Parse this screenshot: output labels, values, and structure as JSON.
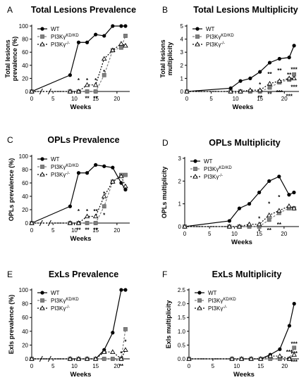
{
  "colors": {
    "wt": "#000000",
    "kd": "#808080",
    "ko": "#000000",
    "axis": "#000000"
  },
  "legend_labels": {
    "wt": "WT",
    "kd_base": "PI3Kγ",
    "kd_sup": "KD/KD",
    "ko_base": "PI3Kγ",
    "ko_sup": "-/-"
  },
  "xlabel": "Weeks",
  "chart_data": [
    {
      "letter": "A",
      "title": "Total Lesions Prevalence",
      "type": "line",
      "ylabel_lines": [
        "Total lesions",
        "prevalence (%)"
      ],
      "ylim": [
        0,
        100
      ],
      "yticks": [
        0,
        20,
        40,
        60,
        80,
        100
      ],
      "xticks": [
        0,
        5,
        10,
        15,
        20
      ],
      "xbreak": true,
      "legend": "top-left",
      "series": [
        {
          "name": "WT",
          "x": [
            0,
            9,
            11,
            13,
            15,
            17,
            19,
            21,
            22
          ],
          "y": [
            0,
            25,
            75,
            75,
            87,
            85,
            100,
            100,
            100
          ]
        },
        {
          "name": "PI3Kγ KD/KD",
          "x": [
            0,
            9,
            11,
            13,
            15,
            17,
            19,
            21,
            22
          ],
          "y": [
            0,
            0,
            0,
            0,
            0,
            25,
            63,
            67,
            85
          ]
        },
        {
          "name": "PI3Kγ -/-",
          "x": [
            0,
            9,
            11,
            13,
            15,
            17,
            19,
            21,
            22
          ],
          "y": [
            0,
            0,
            0,
            10,
            10,
            50,
            63,
            73,
            70
          ]
        }
      ],
      "annotations": [
        {
          "text": "*",
          "x": 11,
          "y": 17
        },
        {
          "text": "*",
          "x": 13,
          "y": 17
        },
        {
          "text": "*",
          "x": 15,
          "y": 17
        },
        {
          "text": "*",
          "x": 17,
          "y": 30
        },
        {
          "text": "**",
          "x": 13,
          "y": -10
        },
        {
          "text": "**",
          "x": 15,
          "y": -10
        }
      ]
    },
    {
      "letter": "B",
      "title": "Total Lesions Multiplicity",
      "type": "line",
      "ylabel_lines": [
        "Total lesions",
        "multiplicity"
      ],
      "ylim": [
        0,
        5
      ],
      "yticks": [
        0,
        1,
        2,
        3,
        4,
        5
      ],
      "xticks": [
        0,
        5,
        10,
        15,
        20
      ],
      "xbreak": false,
      "legend": "top-left",
      "series": [
        {
          "name": "WT",
          "x": [
            0,
            9,
            11,
            13,
            15,
            17,
            19,
            21,
            22
          ],
          "y": [
            0,
            0.25,
            0.8,
            1.0,
            1.5,
            2.2,
            2.5,
            2.6,
            3.5
          ]
        },
        {
          "name": "PI3Kγ KD/KD",
          "x": [
            0,
            9,
            11,
            13,
            15,
            17,
            19,
            21,
            22
          ],
          "y": [
            0,
            0,
            0,
            0,
            0,
            0.3,
            0.7,
            0.9,
            1.3
          ]
        },
        {
          "name": "PI3Kγ -/-",
          "x": [
            0,
            9,
            11,
            13,
            15,
            17,
            19,
            21,
            22
          ],
          "y": [
            0,
            0,
            0,
            0.1,
            0.1,
            0.6,
            0.8,
            1.0,
            1.0
          ]
        }
      ],
      "annotations": [
        {
          "text": "*",
          "x": 15,
          "y": 0.55
        },
        {
          "text": "**",
          "x": 17,
          "y": 1.35
        },
        {
          "text": "**",
          "x": 19,
          "y": 1.6
        },
        {
          "text": "**",
          "x": 21,
          "y": 1.3
        },
        {
          "text": "***",
          "x": 22,
          "y": 1.7
        },
        {
          "text": "**",
          "x": 15,
          "y": -0.45
        },
        {
          "text": "**",
          "x": 17,
          "y": -0.2
        },
        {
          "text": "***",
          "x": 19,
          "y": -0.05
        },
        {
          "text": "***",
          "x": 21,
          "y": -0.35
        },
        {
          "text": "***",
          "x": 22,
          "y": 0.35
        }
      ]
    },
    {
      "letter": "C",
      "title": "OPLs Prevalence",
      "type": "line",
      "ylabel_lines": [
        "OPLs prevalence (%)"
      ],
      "ylim": [
        0,
        100
      ],
      "yticks": [
        0,
        20,
        40,
        60,
        80,
        100
      ],
      "xticks": [
        0,
        5,
        10,
        15,
        20
      ],
      "xbreak": true,
      "legend": "top-left",
      "series": [
        {
          "name": "WT",
          "x": [
            0,
            9,
            11,
            13,
            15,
            17,
            19,
            21,
            22
          ],
          "y": [
            0,
            25,
            75,
            75,
            87,
            85,
            83,
            60,
            50
          ]
        },
        {
          "name": "PI3Kγ KD/KD",
          "x": [
            0,
            9,
            11,
            13,
            15,
            17,
            19,
            21,
            22
          ],
          "y": [
            0,
            0,
            0,
            0,
            0,
            25,
            62,
            72,
            72
          ]
        },
        {
          "name": "PI3Kγ -/-",
          "x": [
            0,
            9,
            11,
            13,
            15,
            17,
            19,
            21,
            22
          ],
          "y": [
            0,
            0,
            0,
            10,
            10,
            40,
            62,
            70,
            55
          ]
        }
      ],
      "annotations": [
        {
          "text": "*",
          "x": 11,
          "y": 18
        },
        {
          "text": "*",
          "x": 13,
          "y": 18
        },
        {
          "text": "**",
          "x": 15,
          "y": 18
        },
        {
          "text": "*",
          "x": 17,
          "y": 44
        },
        {
          "text": "*",
          "x": 17,
          "y": 12
        },
        {
          "text": "**",
          "x": 11,
          "y": -10
        },
        {
          "text": "**",
          "x": 13,
          "y": -10
        },
        {
          "text": "**",
          "x": 15,
          "y": -10
        }
      ]
    },
    {
      "letter": "D",
      "title": "OPLs Multiplicity",
      "type": "line",
      "ylabel_lines": [
        "OPLs multiplicity"
      ],
      "ylim": [
        0,
        3
      ],
      "yticks": [
        0,
        1,
        2,
        3
      ],
      "xticks": [
        0,
        5,
        10,
        15,
        20
      ],
      "xbreak": false,
      "legend": "top-left",
      "series": [
        {
          "name": "WT",
          "x": [
            0,
            9,
            11,
            13,
            15,
            17,
            19,
            21,
            22
          ],
          "y": [
            0,
            0.25,
            0.8,
            1.0,
            1.5,
            2.0,
            2.2,
            1.4,
            1.5
          ]
        },
        {
          "name": "PI3Kγ KD/KD",
          "x": [
            0,
            9,
            11,
            13,
            15,
            17,
            19,
            21,
            22
          ],
          "y": [
            0,
            0,
            0,
            0,
            0,
            0.3,
            0.6,
            0.8,
            0.8
          ]
        },
        {
          "name": "PI3Kγ -/-",
          "x": [
            0,
            9,
            11,
            13,
            15,
            17,
            19,
            21,
            22
          ],
          "y": [
            0,
            0,
            0,
            0.1,
            0.1,
            0.5,
            0.7,
            0.9,
            0.8
          ]
        }
      ],
      "annotations": [
        {
          "text": "*",
          "x": 15,
          "y": 0.35
        },
        {
          "text": "*",
          "x": 17,
          "y": 1.0
        },
        {
          "text": "*",
          "x": 19,
          "y": 1.3
        },
        {
          "text": "**",
          "x": 17,
          "y": -0.15
        },
        {
          "text": "*",
          "x": 15,
          "y": -0.2
        },
        {
          "text": "**",
          "x": 19,
          "y": 0.1
        }
      ]
    },
    {
      "letter": "E",
      "title": "ExLs Prevalence",
      "type": "line",
      "ylabel_lines": [
        "Exls prevalence (%)"
      ],
      "ylim": [
        0,
        100
      ],
      "yticks": [
        0,
        20,
        40,
        60,
        80,
        100
      ],
      "xticks": [
        0,
        5,
        10,
        15,
        20
      ],
      "xbreak": true,
      "legend": "top-left",
      "series": [
        {
          "name": "WT",
          "x": [
            0,
            9,
            11,
            13,
            15,
            17,
            19,
            21,
            22
          ],
          "y": [
            0,
            0,
            0,
            0,
            0,
            13,
            38,
            100,
            100
          ]
        },
        {
          "name": "PI3Kγ KD/KD",
          "x": [
            0,
            9,
            11,
            13,
            15,
            17,
            19,
            21,
            22
          ],
          "y": [
            0,
            0,
            0,
            0,
            0,
            0,
            0,
            0,
            43
          ]
        },
        {
          "name": "PI3Kγ -/-",
          "x": [
            0,
            9,
            11,
            13,
            15,
            17,
            19,
            21,
            22
          ],
          "y": [
            0,
            0,
            0,
            0,
            0,
            10,
            10,
            0,
            13
          ]
        }
      ],
      "annotations": [
        {
          "text": "*",
          "x": 22,
          "y": 25
        },
        {
          "text": "*",
          "x": 21,
          "y": 8
        },
        {
          "text": "**",
          "x": 21,
          "y": -10
        }
      ]
    },
    {
      "letter": "F",
      "title": "ExLs Multiplicity",
      "type": "line",
      "ylabel_lines": [
        "Exls multiplicity"
      ],
      "ylim": [
        0,
        2.5
      ],
      "yticks": [
        0,
        0.5,
        1,
        1.5,
        2,
        2.5
      ],
      "ytick_labels": [
        "0.0",
        "0.5",
        "1.0",
        "1.5",
        "2.0",
        "2.5"
      ],
      "xticks": [
        0,
        5,
        10,
        15,
        20
      ],
      "xbreak": false,
      "legend": "top-left",
      "series": [
        {
          "name": "WT",
          "x": [
            0,
            9,
            11,
            13,
            15,
            17,
            19,
            21,
            22
          ],
          "y": [
            0,
            0,
            0,
            0,
            0,
            0.15,
            0.35,
            1.2,
            2.0
          ]
        },
        {
          "name": "PI3Kγ KD/KD",
          "x": [
            0,
            9,
            11,
            13,
            15,
            17,
            19,
            21,
            22
          ],
          "y": [
            0,
            0,
            0,
            0,
            0,
            0,
            0,
            0,
            0.4
          ]
        },
        {
          "name": "PI3Kγ -/-",
          "x": [
            0,
            9,
            11,
            13,
            15,
            17,
            19,
            21,
            22
          ],
          "y": [
            0,
            0,
            0,
            0,
            0,
            0.1,
            0.1,
            0,
            0.15
          ]
        }
      ],
      "annotations": [
        {
          "text": "***",
          "x": 22,
          "y": 0.55
        },
        {
          "text": "***",
          "x": 21,
          "y": 0.25
        },
        {
          "text": "***",
          "x": 22,
          "y": 0.2
        },
        {
          "text": "***",
          "x": 22,
          "y": -0.1
        }
      ]
    }
  ]
}
